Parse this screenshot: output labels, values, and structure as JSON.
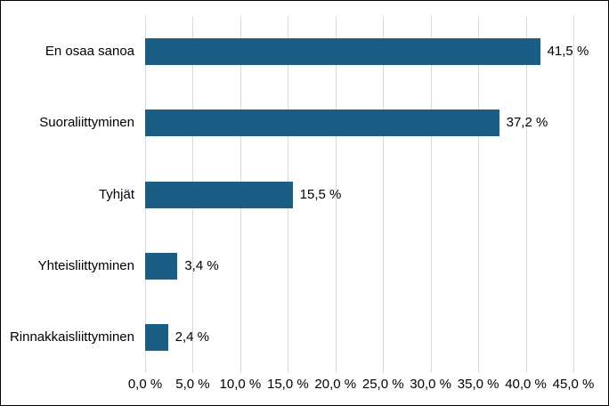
{
  "window": {
    "background": "#ffffff",
    "frame_border_color": "#000000"
  },
  "chart_data": {
    "type": "bar",
    "orientation": "horizontal",
    "title": "",
    "categories": [
      "En osaa sanoa",
      "Suoraliittyminen",
      "Tyhjät",
      "Yhteisliittyminen",
      "Rinnakkaisliittyminen"
    ],
    "values": [
      41.5,
      37.2,
      15.5,
      3.4,
      2.4
    ],
    "value_labels": [
      "41,5 %",
      "37,2 %",
      "15,5 %",
      "3,4 %",
      "2,4 %"
    ],
    "x_tick_values": [
      0,
      5,
      10,
      15,
      20,
      25,
      30,
      35,
      40,
      45
    ],
    "x_tick_labels": [
      "0,0 %",
      "5,0 %",
      "10,0 %",
      "15,0 %",
      "20,0 %",
      "25,0 %",
      "30,0 %",
      "35,0 %",
      "40,0 %",
      "45,0 %"
    ],
    "xlim": [
      0,
      45
    ],
    "xlabel": "",
    "ylabel": "",
    "grid": "vertical",
    "legend": "none",
    "colors": {
      "bar": "#1b5e85",
      "gridline": "#d9d9d9",
      "text": "#000000"
    }
  }
}
